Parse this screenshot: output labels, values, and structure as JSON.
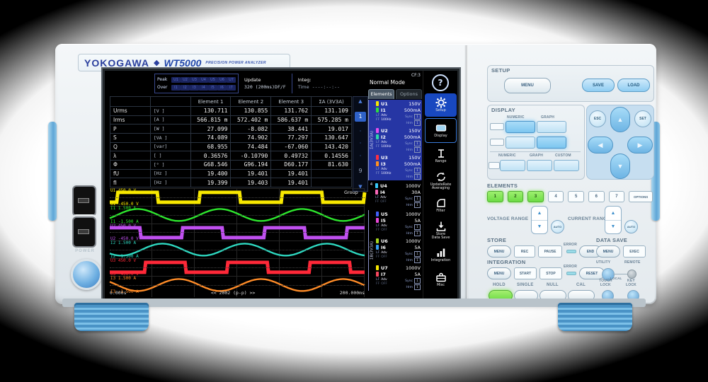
{
  "device": {
    "brand": "YOKOGAWA",
    "diamond": "◆",
    "model": "WT5000",
    "tagline": "PRECISION POWER ANALYZER",
    "power_label": "POWER"
  },
  "screen": {
    "status": {
      "peak_label": "Peak",
      "over_label": "Over",
      "peak_indicators": [
        "U1",
        "U2",
        "U3",
        "U4",
        "U5",
        "U6",
        "U7"
      ],
      "over_indicators": [
        "I1",
        "I2",
        "I3",
        "I4",
        "I5",
        "I6",
        "I7"
      ],
      "update_label": "Update",
      "update_value": "320 (200ms)DF/F",
      "integ_label": "Integ:",
      "time_label": "Time",
      "time_value": "----:--:--",
      "mode": "Normal Mode",
      "cf": "CF:3",
      "help": "?"
    },
    "table": {
      "headers": [
        "Element 1",
        "Element 2",
        "Element 3",
        "ΣA (3V3A)"
      ],
      "rows": [
        {
          "name": "Urms",
          "unit": "[V  ]",
          "values": [
            "130.711",
            "130.855",
            "131.762",
            "131.109"
          ]
        },
        {
          "name": "Irms",
          "unit": "[A  ]",
          "values": [
            "566.815 m",
            "572.402 m",
            "586.637 m",
            "575.285 m"
          ]
        },
        {
          "name": "P",
          "unit": "[W  ]",
          "values": [
            "27.099",
            "-8.082",
            "38.441",
            "19.017"
          ]
        },
        {
          "name": "S",
          "unit": "[VA ]",
          "values": [
            "74.089",
            "74.902",
            "77.297",
            "130.647"
          ]
        },
        {
          "name": "Q",
          "unit": "[var]",
          "values": [
            "68.955",
            "74.484",
            "-67.060",
            "143.420"
          ]
        },
        {
          "name": "λ",
          "unit": "[   ]",
          "values": [
            "0.36576",
            "-0.10790",
            "0.49732",
            "0.14556"
          ]
        },
        {
          "name": "Φ",
          "unit": "[°  ]",
          "values": [
            "G68.546",
            "G96.194",
            "D60.177",
            "81.630"
          ]
        },
        {
          "name": "fU",
          "unit": "[Hz ]",
          "values": [
            "19.400",
            "19.401",
            "19.401",
            ""
          ]
        },
        {
          "name": "fI",
          "unit": "[Hz ]",
          "values": [
            "19.399",
            "19.403",
            "19.401",
            ""
          ]
        }
      ]
    },
    "pager": {
      "up": "▲",
      "pages": [
        "1",
        "·",
        "·",
        "·",
        "9"
      ],
      "down": "▼",
      "active": "1"
    },
    "group_label": "Group",
    "elements_panel": {
      "tabs": [
        {
          "label": "Elements",
          "active": true
        },
        {
          "label": "Options",
          "active": false
        }
      ],
      "lf_label": "LF",
      "ff_label": "FF",
      "sync_label": "Sync",
      "hrm_label": "Hrm",
      "sync_box": "1",
      "hrm_box": "1",
      "groups": [
        {
          "label": "ΣA(3V3A)",
          "blue": true,
          "elements": [
            {
              "u": "U1",
              "ur": "150V",
              "uc": "#f8e800",
              "i": "I1",
              "ir": "500mA",
              "ic": "#2edc40",
              "lf": "Adv",
              "ff": "100Hz",
              "ff_on": true
            },
            {
              "u": "U2",
              "ur": "150V",
              "uc": "#e84df0",
              "i": "I2",
              "ir": "500mA",
              "ic": "#2ed8a8",
              "lf": "Adv",
              "ff": "100Hz",
              "ff_on": true
            },
            {
              "u": "U3",
              "ur": "150V",
              "uc": "#ff3040",
              "i": "I3",
              "ir": "500mA",
              "ic": "#ff9020",
              "lf": "Adv",
              "ff": "100Hz",
              "ff_on": true
            }
          ]
        },
        {
          "label": "4",
          "blue": false,
          "elements": [
            {
              "u": "U4",
              "ur": "1000V",
              "uc": "#38c8f8",
              "i": "I4",
              "ir": "30A",
              "ic": "#f868b8",
              "lf": "Adv",
              "ff": "OFF",
              "ff_on": false
            }
          ]
        },
        {
          "label": "ΣB(3V3A)",
          "blue": false,
          "elements": [
            {
              "u": "U5",
              "ur": "1000V",
              "uc": "#4060f8",
              "i": "I5",
              "ir": "5A",
              "ic": "#e848d8",
              "lf": "Adv",
              "ff": "OFF",
              "ff_on": false
            },
            {
              "u": "U6",
              "ur": "1000V",
              "uc": "#a8d820",
              "i": "I6",
              "ir": "5A",
              "ic": "#38a0f0",
              "lf": "Adv",
              "ff": "OFF",
              "ff_on": false
            },
            {
              "u": "U7",
              "ur": "1000V",
              "uc": "#f8e800",
              "i": "I7",
              "ir": "5A",
              "ic": "#f84860",
              "lf": "Adv",
              "ff": "OFF",
              "ff_on": false
            }
          ]
        }
      ]
    },
    "menu": [
      {
        "label": "Setup",
        "icon": "gear-icon",
        "sel": true,
        "framed": false
      },
      {
        "label": "Display",
        "icon": "display-icon",
        "sel": false,
        "framed": true
      },
      {
        "label": "Range",
        "icon": "range-icon",
        "sel": false,
        "framed": false
      },
      {
        "label": "UpdateRate\nAveraging",
        "icon": "update-icon",
        "sel": false,
        "framed": false
      },
      {
        "label": "Filter",
        "icon": "filter-icon",
        "sel": false,
        "framed": false
      },
      {
        "label": "Store\nData Save",
        "icon": "store-icon",
        "sel": false,
        "framed": false
      },
      {
        "label": "Integration",
        "icon": "integration-icon",
        "sel": false,
        "framed": false
      },
      {
        "label": "Misc",
        "icon": "misc-icon",
        "sel": false,
        "framed": false
      }
    ],
    "waveform": {
      "cycles": 3.1,
      "lanes": [
        {
          "ch": "U1",
          "top_label": "U1  450.0 V",
          "bottom_label": "U1 -450.0 V",
          "color": "#f8e800",
          "type": "square",
          "phase": 0.91
        },
        {
          "ch": "I1",
          "top_label": "I1  1.500 A",
          "bottom_label": "I1 -1.500 A",
          "color": "#2ee62e",
          "type": "sine",
          "phase": 0.91
        },
        {
          "ch": "U2",
          "top_label": "U2  450.0 V",
          "bottom_label": "U2 -450.0 V",
          "color": "#c050f0",
          "type": "square",
          "phase": 0.12
        },
        {
          "ch": "I2",
          "top_label": "I2  1.500 A",
          "bottom_label": "I2 -1.500 A",
          "color": "#2ed8c0",
          "type": "sine",
          "phase": 0.61
        },
        {
          "ch": "U3",
          "top_label": "U3  450.0 V",
          "bottom_label": "U3 -450.0 V",
          "color": "#ff2838",
          "type": "square",
          "phase": 0.57
        },
        {
          "ch": "I3",
          "top_label": "I3  1.500 A",
          "bottom_label": "I3 -1.500 A",
          "color": "#ff8c28",
          "type": "sine",
          "phase": 0.41
        }
      ],
      "t_start": "0.000s",
      "t_center": "<< 2002 (p-p) >>",
      "t_end": "200.000ms"
    }
  },
  "panel": {
    "setup": {
      "title": "SETUP",
      "menu": "MENU",
      "save": "SAVE",
      "load": "LOAD"
    },
    "display": {
      "title": "DISPLAY",
      "h_numeric": "NUMERIC",
      "h_graph": "GRAPH",
      "h2_numeric": "NUMERIC",
      "h2_graph": "GRAPH",
      "h2_custom": "CUSTOM"
    },
    "nav": {
      "esc": "ESC",
      "set": "SET",
      "up": "▲",
      "down": "▼",
      "left": "◀",
      "right": "▶"
    },
    "elements": {
      "title": "ELEMENTS",
      "keys": [
        {
          "label": "1",
          "lit": true
        },
        {
          "label": "2",
          "lit": true
        },
        {
          "label": "3",
          "lit": true
        },
        {
          "label": "4",
          "lit": false
        },
        {
          "label": "5",
          "lit": false
        },
        {
          "label": "6",
          "lit": false
        },
        {
          "label": "7",
          "lit": false
        }
      ],
      "options": "OPTIONS"
    },
    "voltage_range": "VOLTAGE RANGE",
    "current_range": "CURRENT RANGE",
    "auto": "AUTO",
    "store": {
      "title": "STORE",
      "menu": "MENU",
      "rec": "REC",
      "pause": "PAUSE",
      "error": "ERROR",
      "end": "END"
    },
    "data_save": {
      "title": "DATA SAVE",
      "menu": "MENU",
      "exec": "EXEC"
    },
    "integration": {
      "title": "INTEGRATION",
      "menu": "MENU",
      "start": "START",
      "stop": "STOP",
      "error": "ERROR",
      "reset": "RESET"
    },
    "utility_label": "UTILITY",
    "remote_label": "REMOTE",
    "local_label": "LOCAL",
    "hold": "HOLD",
    "single": "SINGLE",
    "null_label": "NULL",
    "cal": "CAL",
    "touch_l1": "TOUCH",
    "touch_l2": "LOCK",
    "key_l1": "KEY",
    "key_l2": "LOCK"
  }
}
